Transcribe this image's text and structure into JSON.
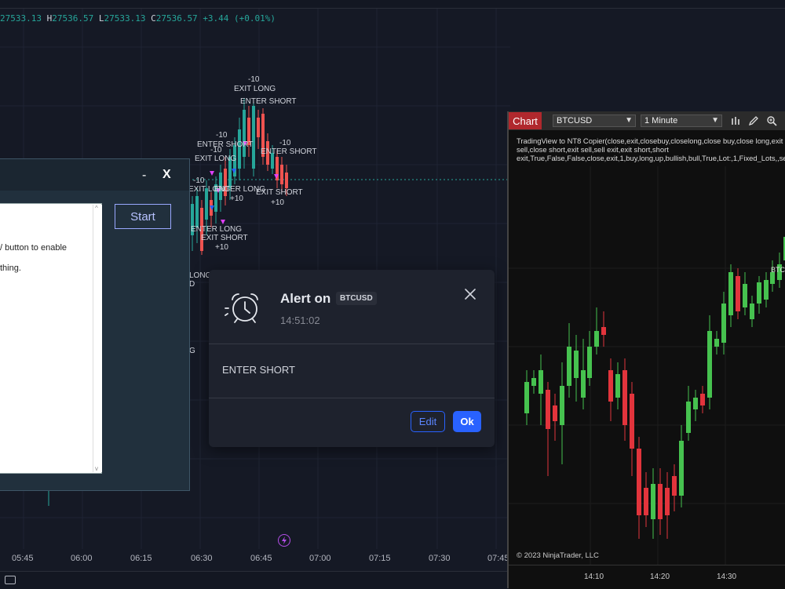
{
  "tv": {
    "ohlc": {
      "o_tail": "27533.13",
      "h_key": "H",
      "h_val": "27536.57",
      "l_key": "L",
      "l_val": "27533.13",
      "c_key": "C",
      "c_val": "27536.57",
      "change": "+3.44 (+0.01%)"
    },
    "time_labels": [
      "05:45",
      "06:00",
      "06:15",
      "06:30",
      "06:45",
      "07:00",
      "07:15",
      "07:30",
      "07:45"
    ],
    "signals": {
      "s1": "-10",
      "s2": "EXIT LONG",
      "s3": "ENTER SHORT",
      "s4": "-10",
      "s5": "ENTER SHORT",
      "s6": "-10",
      "s7": "EXIT LONG",
      "s8": "-10",
      "s9": "ENTER SHORT",
      "s10": "-10",
      "s11": "EXIT LONG",
      "s12": "ENTER LONG",
      "s13": "+10",
      "s14": "EXIT SHORT",
      "s15": "+10",
      "s16": "ENTER LONG",
      "s17": "EXIT SHORT",
      "s18": "+10",
      "s19": "LONG",
      "s20": "D",
      "s21": "G"
    },
    "colors": {
      "bull": "#26a69a",
      "bear": "#ef5350",
      "marker": "#e040fb",
      "marker_up": "#2962ff"
    }
  },
  "copier": {
    "minimize": "-",
    "close": "X",
    "start_label": "Start",
    "text_line1": "/ button to enable",
    "text_line2": "thing."
  },
  "alert": {
    "title": "Alert on",
    "symbol": "BTCUSD",
    "time": "14:51:02",
    "message": "ENTER SHORT",
    "edit_label": "Edit",
    "ok_label": "Ok"
  },
  "nt": {
    "tab_label": "Chart",
    "instrument": "BTCUSD",
    "interval": "1 Minute",
    "strategy_line1": "TradingView to NT8 Copier(close,exit,closebuy,closelong,close buy,close long,exit buy,ex",
    "strategy_line2": "sell,close short,exit sell,sell exit,exit short,short",
    "strategy_line3": "exit,True,False,False,close,exit,1,buy,long,up,bullish,bull,True,Lot:,1,Fixed_Lots,,sell,sho",
    "instrument_tag": "BTC",
    "copyright": "© 2023 NinjaTrader, LLC",
    "time_labels": [
      "14:10",
      "14:20",
      "14:30"
    ],
    "colors": {
      "bull": "#46c24f",
      "bear": "#e2343c"
    }
  }
}
